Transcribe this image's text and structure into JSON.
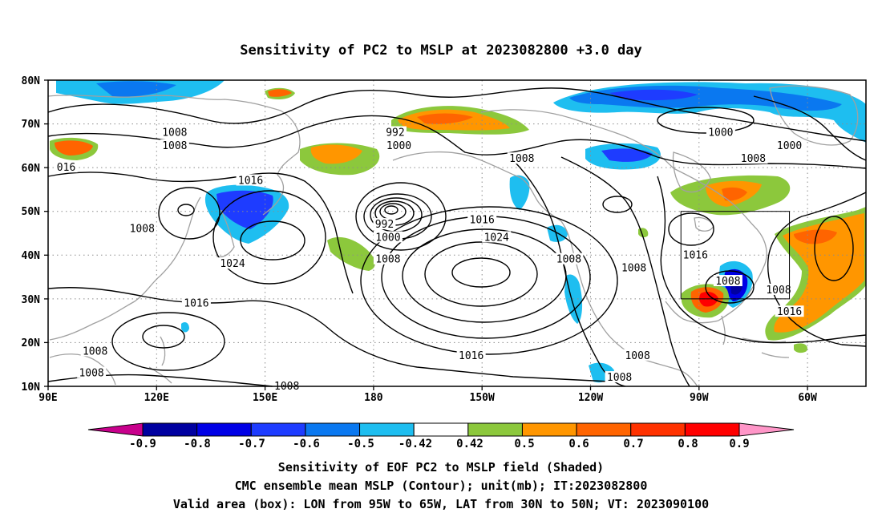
{
  "title": "Sensitivity of PC2 to MSLP at 2023082800 +3.0 day",
  "axes": {
    "lat_labels": [
      "80N",
      "70N",
      "60N",
      "50N",
      "40N",
      "30N",
      "20N",
      "10N"
    ],
    "lon_labels": [
      "90E",
      "120E",
      "150E",
      "180",
      "150W",
      "120W",
      "90W",
      "60W"
    ]
  },
  "colorbar": {
    "labels": [
      "-0.9",
      "-0.8",
      "-0.7",
      "-0.6",
      "-0.5",
      "-0.42",
      "0.42",
      "0.5",
      "0.6",
      "0.7",
      "0.8",
      "0.9"
    ],
    "colors": [
      "#c8008c",
      "#0000a0",
      "#0000e6",
      "#1e3cff",
      "#0a78f0",
      "#1ebef0",
      "#ffffff",
      "#8cc83c",
      "#ff9600",
      "#ff6400",
      "#ff3200",
      "#ff0000",
      "#ff96c8"
    ]
  },
  "contour_labels": [
    {
      "text": "1008",
      "lon": 125,
      "lat": 68
    },
    {
      "text": "1008",
      "lon": 125,
      "lat": 65
    },
    {
      "text": "016",
      "lon": 95,
      "lat": 60
    },
    {
      "text": "1016",
      "lon": 146,
      "lat": 57
    },
    {
      "text": "1008",
      "lon": 116,
      "lat": 46
    },
    {
      "text": "1024",
      "lon": 141,
      "lat": 38
    },
    {
      "text": "1016",
      "lon": 131,
      "lat": 29
    },
    {
      "text": "1008",
      "lon": 103,
      "lat": 18
    },
    {
      "text": "1008",
      "lon": 102,
      "lat": 13
    },
    {
      "text": "1008",
      "lon": 156,
      "lat": 10
    },
    {
      "text": "992",
      "lon": -174,
      "lat": 68
    },
    {
      "text": "1000",
      "lon": -173,
      "lat": 65
    },
    {
      "text": "992",
      "lon": -177,
      "lat": 47
    },
    {
      "text": "1000",
      "lon": -176,
      "lat": 44
    },
    {
      "text": "1008",
      "lon": -176,
      "lat": 39
    },
    {
      "text": "1016",
      "lon": -150,
      "lat": 48
    },
    {
      "text": "1024",
      "lon": -146,
      "lat": 44
    },
    {
      "text": "1016",
      "lon": -153,
      "lat": 17
    },
    {
      "text": "1008",
      "lon": -139,
      "lat": 62
    },
    {
      "text": "1008",
      "lon": -126,
      "lat": 39
    },
    {
      "text": "1008",
      "lon": -108,
      "lat": 37
    },
    {
      "text": "1008",
      "lon": -107,
      "lat": 17
    },
    {
      "text": "1008",
      "lon": -112,
      "lat": 12
    },
    {
      "text": "1000",
      "lon": -84,
      "lat": 68
    },
    {
      "text": "1000",
      "lon": -65,
      "lat": 65
    },
    {
      "text": "1008",
      "lon": -75,
      "lat": 62
    },
    {
      "text": "1016",
      "lon": -91,
      "lat": 40
    },
    {
      "text": "1008",
      "lon": -82,
      "lat": 34
    },
    {
      "text": "1008",
      "lon": -68,
      "lat": 32
    },
    {
      "text": "1016",
      "lon": -65,
      "lat": 27
    }
  ],
  "valid_box": {
    "lon_west": -95,
    "lon_east": -65,
    "lat_south": 30,
    "lat_north": 50
  },
  "captions": [
    "Sensitivity of EOF PC2 to MSLP field (Shaded)",
    "CMC ensemble mean MSLP (Contour); unit(mb); IT:2023082800",
    "Valid area (box): LON from 95W to 65W, LAT from 30N to 50N; VT: 2023090100"
  ]
}
